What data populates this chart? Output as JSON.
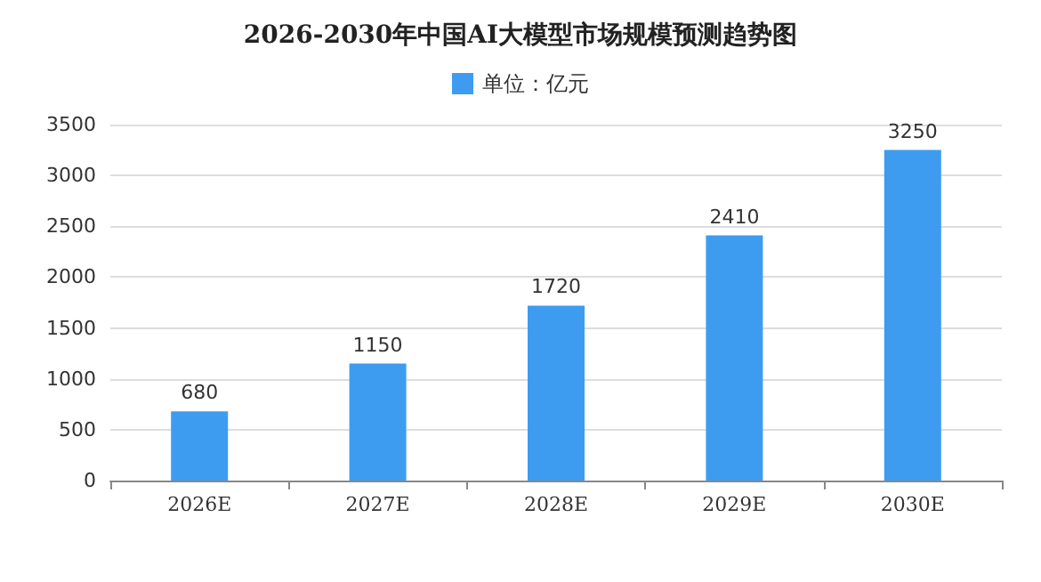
{
  "chart_data": {
    "type": "bar",
    "title": "2026-2030年中国AI大模型市场规模预测趋势图",
    "categories": [
      "2026E",
      "2027E",
      "2028E",
      "2029E",
      "2030E"
    ],
    "series": [
      {
        "name": "单位：亿元",
        "color": "#3d9cf0",
        "values": [
          680,
          1150,
          1720,
          2410,
          3250
        ]
      }
    ],
    "ylim": [
      0,
      3500
    ],
    "yticks": [
      0,
      500,
      1000,
      1500,
      2000,
      2500,
      3000,
      3500
    ],
    "grid": "y",
    "legend": "top",
    "data_labels": true
  }
}
